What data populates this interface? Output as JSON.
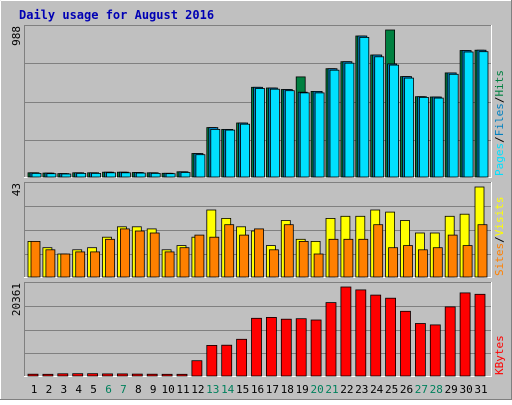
{
  "chart_data": {
    "type": "bar",
    "title": "Daily usage for August 2016",
    "categories": [
      "1",
      "2",
      "3",
      "4",
      "5",
      "6",
      "7",
      "8",
      "9",
      "10",
      "11",
      "12",
      "13",
      "14",
      "15",
      "16",
      "17",
      "18",
      "19",
      "20",
      "21",
      "22",
      "23",
      "24",
      "25",
      "26",
      "27",
      "28",
      "29",
      "30",
      "31"
    ],
    "weekend_days": [
      "6",
      "7",
      "13",
      "14",
      "20",
      "21",
      "27",
      "28"
    ],
    "colors": {
      "hits": "#008040",
      "files": "#0080c0",
      "pages": "#00e0ff",
      "visits": "#ffff00",
      "sites": "#ff8000",
      "kbytes": "#ff0000",
      "weekday_label": "#000000",
      "weekend_label": "#00805c",
      "title": "#0000b4",
      "background": "#c0c0c0"
    },
    "panels": [
      {
        "id": "hits_files_pages",
        "ymax_label": "988",
        "ymax": 988,
        "legend": [
          "Pages",
          "/",
          "Files",
          "/",
          "Hits"
        ],
        "series": [
          {
            "name": "Hits",
            "values": [
              28,
              26,
              23,
              28,
              28,
              32,
              32,
              30,
              28,
              25,
              35,
              158,
              332,
              320,
              363,
              603,
              598,
              588,
              673,
              575,
              728,
              775,
              948,
              820,
              988,
              675,
              540,
              538,
              700,
              850,
              852
            ]
          },
          {
            "name": "Files",
            "values": [
              28,
              26,
              23,
              28,
              28,
              32,
              32,
              30,
              28,
              25,
              35,
              158,
              332,
              320,
              363,
              603,
              598,
              588,
              570,
              575,
              728,
              775,
              948,
              820,
              760,
              675,
              540,
              538,
              700,
              850,
              852
            ]
          },
          {
            "name": "Pages",
            "values": [
              24,
              22,
              20,
              24,
              24,
              28,
              28,
              26,
              24,
              22,
              30,
              150,
              320,
              315,
              355,
              595,
              590,
              580,
              565,
              565,
              718,
              765,
              938,
              808,
              752,
              665,
              535,
              530,
              690,
              840,
              842
            ]
          }
        ]
      },
      {
        "id": "visits_sites",
        "ymax_label": "43",
        "ymax": 43,
        "legend": [
          "Sites",
          "/",
          "Visits"
        ],
        "series": [
          {
            "name": "Visits",
            "values": [
              17,
              14,
              11,
              13,
              14,
              19,
              24,
              24,
              23,
              13,
              15,
              19,
              32,
              28,
              24,
              22,
              15,
              27,
              18,
              17,
              28,
              29,
              29,
              32,
              31,
              27,
              21,
              21,
              29,
              30,
              43
            ]
          },
          {
            "name": "Sites",
            "values": [
              17,
              13,
              11,
              12,
              12,
              18,
              23,
              22,
              21,
              12,
              14,
              20,
              19,
              25,
              20,
              23,
              13,
              25,
              17,
              11,
              18,
              18,
              18,
              25,
              14,
              15,
              13,
              14,
              20,
              15,
              25
            ]
          }
        ]
      },
      {
        "id": "kbytes",
        "ymax_label": "20361",
        "ymax": 20361,
        "legend": [
          "KBytes"
        ],
        "series": [
          {
            "name": "KBytes",
            "values": [
              420,
              380,
              500,
              520,
              530,
              480,
              470,
              440,
              410,
              380,
              380,
              3500,
              7000,
              7050,
              8400,
              13200,
              13400,
              13000,
              13100,
              12800,
              16800,
              20361,
              19700,
              18500,
              17800,
              14800,
              12000,
              11700,
              15800,
              19000,
              18700
            ]
          }
        ]
      }
    ]
  }
}
